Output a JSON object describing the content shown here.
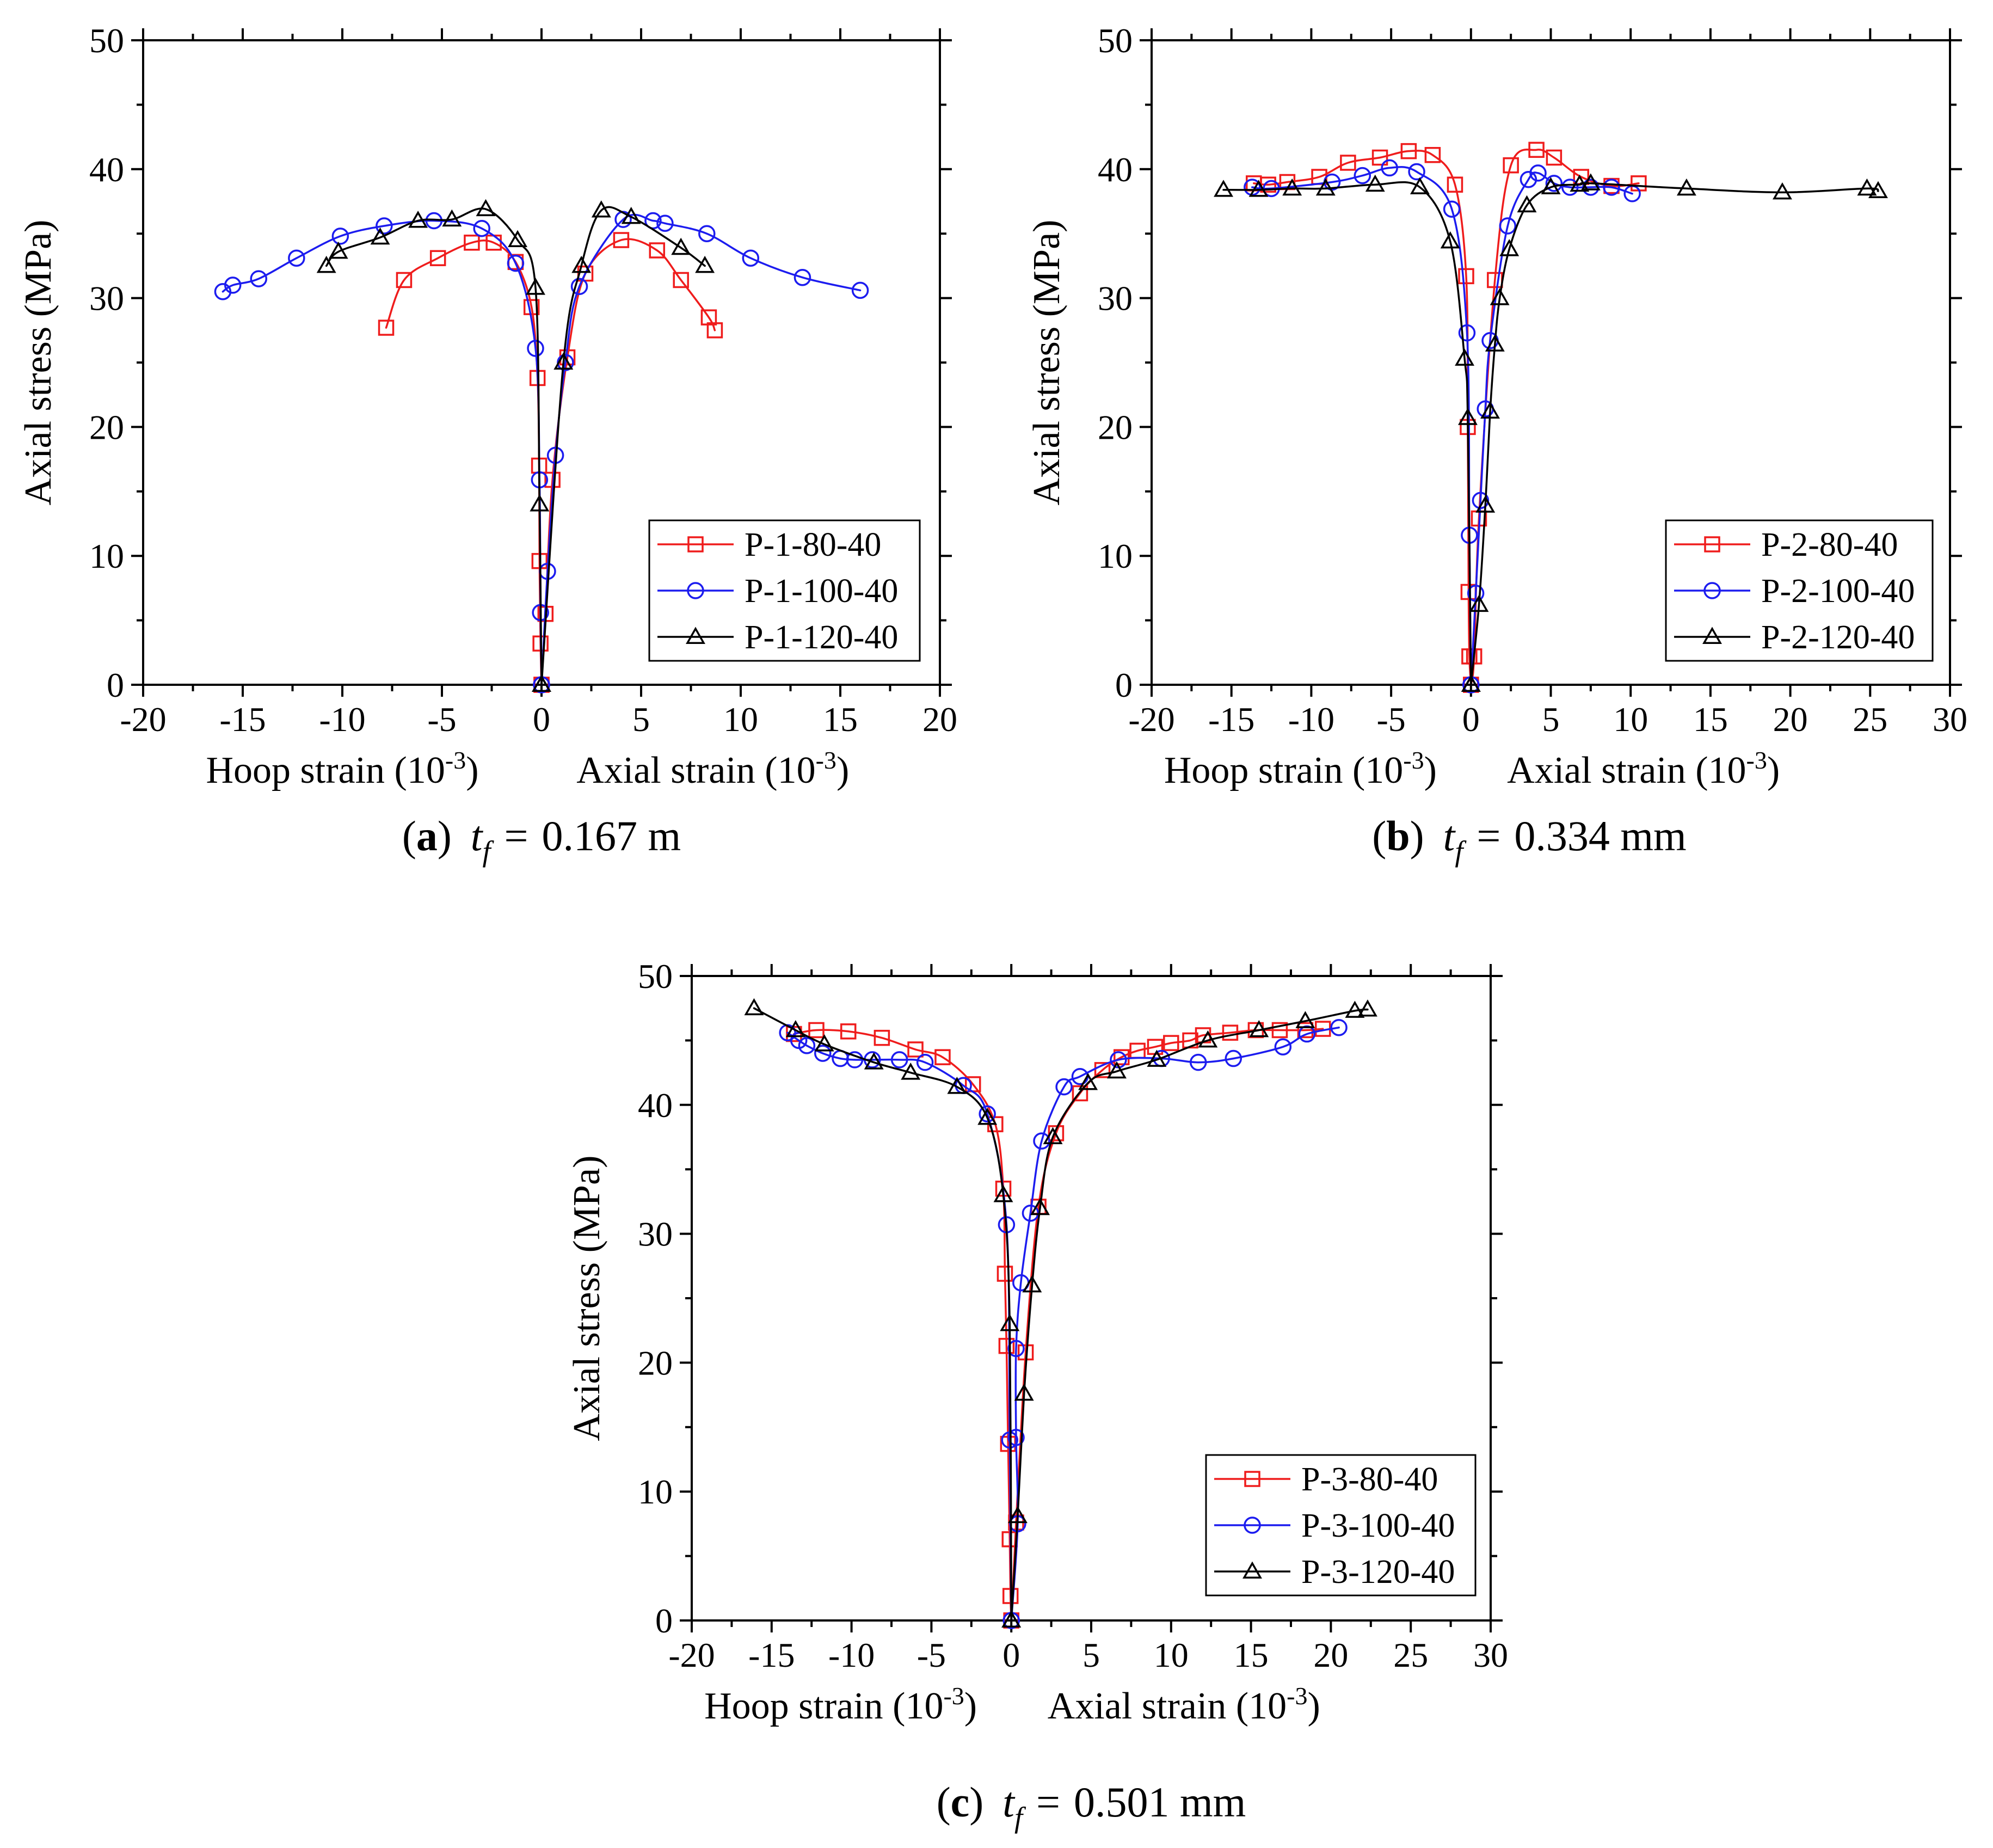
{
  "figure_title": "Axial stress versus hoop and axial strain",
  "colors": {
    "red": "#ef1c1c",
    "blue": "#1c1cef",
    "black": "#000000"
  },
  "chart_data": [
    {
      "id": "a",
      "type": "line",
      "caption": {
        "letter": "(a)",
        "symbol": "t",
        "subscript": "f",
        "equals": "=",
        "value": "0.167 m"
      },
      "xlabel_left": "Hoop strain (10",
      "xlabel_right": "Axial strain (10",
      "xlabel_exp": "-3",
      "xlabel_close": ")",
      "ylabel": "Axial stress (MPa)",
      "xlim": [
        -20,
        20
      ],
      "ylim": [
        0,
        50
      ],
      "xticks": [
        -20,
        -15,
        -10,
        -5,
        0,
        5,
        10,
        15,
        20
      ],
      "yticks": [
        0,
        10,
        20,
        30,
        40,
        50
      ],
      "legend": "bottom-right",
      "series": [
        {
          "name": "P-1-80-40",
          "color": "red",
          "marker": "square",
          "hoop": [
            [
              0,
              0
            ],
            [
              -0.05,
              3.2
            ],
            [
              -0.1,
              9.6
            ],
            [
              -0.12,
              17
            ],
            [
              -0.2,
              23.8
            ],
            [
              -0.5,
              29.3
            ],
            [
              -1.3,
              32.8
            ],
            [
              -2.4,
              34.3
            ],
            [
              -3.5,
              34.3
            ],
            [
              -5.2,
              33.1
            ],
            [
              -6.9,
              31.4
            ],
            [
              -7.8,
              27.7
            ]
          ],
          "axial": [
            [
              0,
              0
            ],
            [
              0.2,
              5.5
            ],
            [
              0.55,
              15.9
            ],
            [
              1.3,
              25.4
            ],
            [
              2.2,
              31.9
            ],
            [
              4.0,
              34.5
            ],
            [
              5.8,
              33.7
            ],
            [
              7.0,
              31.4
            ],
            [
              8.4,
              28.5
            ],
            [
              8.7,
              27.5
            ]
          ]
        },
        {
          "name": "P-1-100-40",
          "color": "blue",
          "marker": "circle",
          "hoop": [
            [
              0,
              0
            ],
            [
              -0.05,
              5.6
            ],
            [
              -0.1,
              15.9
            ],
            [
              -0.3,
              26.1
            ],
            [
              -1.3,
              32.7
            ],
            [
              -3.0,
              35.4
            ],
            [
              -5.4,
              36.0
            ],
            [
              -7.9,
              35.6
            ],
            [
              -10.1,
              34.8
            ],
            [
              -12.3,
              33.1
            ],
            [
              -14.2,
              31.5
            ],
            [
              -15.5,
              31.0
            ],
            [
              -16.0,
              30.5
            ]
          ],
          "axial": [
            [
              0,
              0
            ],
            [
              0.3,
              8.8
            ],
            [
              0.7,
              17.8
            ],
            [
              1.2,
              25.0
            ],
            [
              1.9,
              30.9
            ],
            [
              4.1,
              36.1
            ],
            [
              5.6,
              36.0
            ],
            [
              6.2,
              35.8
            ],
            [
              8.3,
              35.0
            ],
            [
              10.5,
              33.1
            ],
            [
              13.1,
              31.6
            ],
            [
              16.0,
              30.6
            ]
          ]
        },
        {
          "name": "P-1-120-40",
          "color": "black",
          "marker": "triangle",
          "hoop": [
            [
              0,
              0
            ],
            [
              -0.1,
              14.0
            ],
            [
              -0.3,
              30.8
            ],
            [
              -1.2,
              34.5
            ],
            [
              -2.8,
              36.9
            ],
            [
              -4.5,
              36.1
            ],
            [
              -6.2,
              36.0
            ],
            [
              -8.1,
              34.7
            ],
            [
              -10.2,
              33.6
            ],
            [
              -10.8,
              32.5
            ]
          ],
          "axial": [
            [
              0,
              0
            ],
            [
              1.1,
              25.0
            ],
            [
              2.0,
              32.5
            ],
            [
              3.0,
              36.8
            ],
            [
              4.5,
              36.3
            ],
            [
              7.0,
              33.9
            ],
            [
              8.2,
              32.5
            ]
          ]
        }
      ]
    },
    {
      "id": "b",
      "type": "line",
      "caption": {
        "letter": "(b)",
        "symbol": "t",
        "subscript": "f",
        "equals": "=",
        "value": "0.334 mm"
      },
      "xlabel_left": "Hoop strain (10",
      "xlabel_right": "Axial strain (10",
      "xlabel_exp": "-3",
      "xlabel_close": ")",
      "ylabel": "Axial stress (MPa)",
      "xlim": [
        -20,
        30
      ],
      "ylim": [
        0,
        50
      ],
      "xticks": [
        -20,
        -15,
        -10,
        -5,
        0,
        5,
        10,
        15,
        20,
        25,
        30
      ],
      "yticks": [
        0,
        10,
        20,
        30,
        40,
        50
      ],
      "legend": "bottom-right",
      "series": [
        {
          "name": "P-2-80-40",
          "color": "red",
          "marker": "square",
          "hoop": [
            [
              0,
              0
            ],
            [
              -0.1,
              2.2
            ],
            [
              -0.15,
              7.2
            ],
            [
              -0.2,
              20.0
            ],
            [
              -0.3,
              31.7
            ],
            [
              -1.0,
              38.8
            ],
            [
              -2.4,
              41.1
            ],
            [
              -3.9,
              41.4
            ],
            [
              -5.7,
              40.9
            ],
            [
              -7.7,
              40.5
            ],
            [
              -9.5,
              39.4
            ],
            [
              -11.5,
              39.0
            ],
            [
              -12.7,
              38.8
            ],
            [
              -13.6,
              38.9
            ]
          ],
          "axial": [
            [
              0,
              0
            ],
            [
              0.2,
              2.2
            ],
            [
              0.5,
              12.9
            ],
            [
              1.5,
              31.4
            ],
            [
              2.5,
              40.3
            ],
            [
              4.1,
              41.5
            ],
            [
              5.2,
              40.9
            ],
            [
              6.9,
              39.4
            ],
            [
              8.8,
              38.7
            ],
            [
              10.5,
              38.9
            ]
          ]
        },
        {
          "name": "P-2-100-40",
          "color": "blue",
          "marker": "circle",
          "hoop": [
            [
              0,
              0
            ],
            [
              -0.1,
              11.6
            ],
            [
              -0.25,
              27.3
            ],
            [
              -1.2,
              36.9
            ],
            [
              -3.4,
              39.8
            ],
            [
              -5.1,
              40.1
            ],
            [
              -6.8,
              39.5
            ],
            [
              -8.7,
              39.0
            ],
            [
              -12.5,
              38.5
            ],
            [
              -13.7,
              38.6
            ]
          ],
          "axial": [
            [
              0,
              0
            ],
            [
              0.3,
              7.1
            ],
            [
              0.6,
              14.3
            ],
            [
              0.9,
              21.4
            ],
            [
              1.2,
              26.7
            ],
            [
              2.3,
              35.6
            ],
            [
              3.6,
              39.2
            ],
            [
              4.2,
              39.7
            ],
            [
              5.2,
              38.9
            ],
            [
              6.2,
              38.6
            ],
            [
              7.5,
              38.6
            ],
            [
              8.8,
              38.6
            ],
            [
              10.1,
              38.1
            ]
          ]
        },
        {
          "name": "P-2-120-40",
          "color": "black",
          "marker": "triangle",
          "hoop": [
            [
              0,
              0
            ],
            [
              -0.2,
              20.7
            ],
            [
              -0.4,
              25.3
            ],
            [
              -1.3,
              34.4
            ],
            [
              -3.2,
              38.6
            ],
            [
              -6.0,
              38.8
            ],
            [
              -9.1,
              38.5
            ],
            [
              -11.2,
              38.5
            ],
            [
              -13.3,
              38.4
            ],
            [
              -15.5,
              38.4
            ]
          ],
          "axial": [
            [
              0,
              0
            ],
            [
              0.5,
              6.2
            ],
            [
              0.9,
              13.9
            ],
            [
              1.2,
              21.2
            ],
            [
              1.5,
              26.4
            ],
            [
              1.8,
              30.0
            ],
            [
              2.4,
              33.8
            ],
            [
              3.5,
              37.2
            ],
            [
              5.0,
              38.6
            ],
            [
              6.8,
              38.8
            ],
            [
              7.5,
              38.9
            ],
            [
              13.5,
              38.5
            ],
            [
              19.5,
              38.2
            ],
            [
              24.8,
              38.5
            ],
            [
              25.5,
              38.3
            ]
          ]
        }
      ]
    },
    {
      "id": "c",
      "type": "line",
      "caption": {
        "letter": "(c)",
        "symbol": "t",
        "subscript": "f",
        "equals": "=",
        "value": "0.501 mm"
      },
      "xlabel_left": "Hoop strain (10",
      "xlabel_right": "Axial strain (10",
      "xlabel_exp": "-3",
      "xlabel_close": ")",
      "ylabel": "Axial stress (MPa)",
      "xlim": [
        -20,
        30
      ],
      "ylim": [
        0,
        50
      ],
      "xticks": [
        -20,
        -15,
        -10,
        -5,
        0,
        5,
        10,
        15,
        20,
        25,
        30
      ],
      "yticks": [
        0,
        10,
        20,
        30,
        40,
        50
      ],
      "legend": "bottom-right",
      "series": [
        {
          "name": "P-3-80-40",
          "color": "red",
          "marker": "square",
          "hoop": [
            [
              0,
              0
            ],
            [
              -0.05,
              1.9
            ],
            [
              -0.1,
              6.3
            ],
            [
              -0.2,
              13.7
            ],
            [
              -0.3,
              21.3
            ],
            [
              -0.4,
              26.9
            ],
            [
              -0.5,
              33.5
            ],
            [
              -1.0,
              38.5
            ],
            [
              -2.4,
              41.6
            ],
            [
              -4.3,
              43.7
            ],
            [
              -6.0,
              44.3
            ],
            [
              -8.1,
              45.2
            ],
            [
              -10.2,
              45.7
            ],
            [
              -12.2,
              45.8
            ],
            [
              -13.6,
              45.5
            ]
          ],
          "axial": [
            [
              0,
              0
            ],
            [
              0.3,
              7.6
            ],
            [
              0.9,
              20.8
            ],
            [
              1.7,
              32.1
            ],
            [
              2.8,
              37.8
            ],
            [
              4.3,
              40.9
            ],
            [
              5.7,
              42.7
            ],
            [
              6.9,
              43.7
            ],
            [
              7.9,
              44.2
            ],
            [
              9.0,
              44.5
            ],
            [
              10.0,
              44.8
            ],
            [
              11.2,
              45.0
            ],
            [
              12.0,
              45.4
            ],
            [
              13.7,
              45.6
            ],
            [
              15.3,
              45.8
            ],
            [
              16.8,
              45.8
            ],
            [
              18.4,
              45.8
            ],
            [
              19.5,
              45.9
            ]
          ]
        },
        {
          "name": "P-3-100-40",
          "color": "blue",
          "marker": "circle",
          "hoop": [
            [
              0,
              0
            ],
            [
              -0.1,
              14.0
            ],
            [
              -0.3,
              30.7
            ],
            [
              -1.5,
              39.3
            ],
            [
              -3.0,
              41.5
            ],
            [
              -5.4,
              43.3
            ],
            [
              -7.0,
              43.5
            ],
            [
              -8.7,
              43.5
            ],
            [
              -9.8,
              43.5
            ],
            [
              -10.7,
              43.6
            ],
            [
              -11.8,
              44.0
            ],
            [
              -12.8,
              44.6
            ],
            [
              -13.3,
              45.0
            ],
            [
              -14.0,
              45.6
            ]
          ],
          "axial": [
            [
              0,
              0
            ],
            [
              0.4,
              7.5
            ],
            [
              0.3,
              14.2
            ],
            [
              0.3,
              21.1
            ],
            [
              0.6,
              26.2
            ],
            [
              1.2,
              31.6
            ],
            [
              1.9,
              37.2
            ],
            [
              3.3,
              41.4
            ],
            [
              4.3,
              42.2
            ],
            [
              6.7,
              43.5
            ],
            [
              9.4,
              43.6
            ],
            [
              11.7,
              43.3
            ],
            [
              13.9,
              43.6
            ],
            [
              17.0,
              44.5
            ],
            [
              18.5,
              45.5
            ],
            [
              20.5,
              46.0
            ]
          ]
        },
        {
          "name": "P-3-120-40",
          "color": "black",
          "marker": "triangle",
          "hoop": [
            [
              0,
              0
            ],
            [
              -0.1,
              23.0
            ],
            [
              -0.5,
              33.0
            ],
            [
              -1.5,
              39.0
            ],
            [
              -3.4,
              41.4
            ],
            [
              -6.3,
              42.5
            ],
            [
              -8.6,
              43.3
            ],
            [
              -11.7,
              44.7
            ],
            [
              -13.5,
              45.8
            ],
            [
              -16.1,
              47.5
            ]
          ],
          "axial": [
            [
              0,
              0
            ],
            [
              0.4,
              8.1
            ],
            [
              0.8,
              17.6
            ],
            [
              1.3,
              26.0
            ],
            [
              1.8,
              32.0
            ],
            [
              2.6,
              37.5
            ],
            [
              4.8,
              41.7
            ],
            [
              6.6,
              42.6
            ],
            [
              9.1,
              43.5
            ],
            [
              12.3,
              45.0
            ],
            [
              15.5,
              45.8
            ],
            [
              18.4,
              46.5
            ],
            [
              21.5,
              47.3
            ],
            [
              22.3,
              47.4
            ]
          ]
        }
      ]
    }
  ]
}
